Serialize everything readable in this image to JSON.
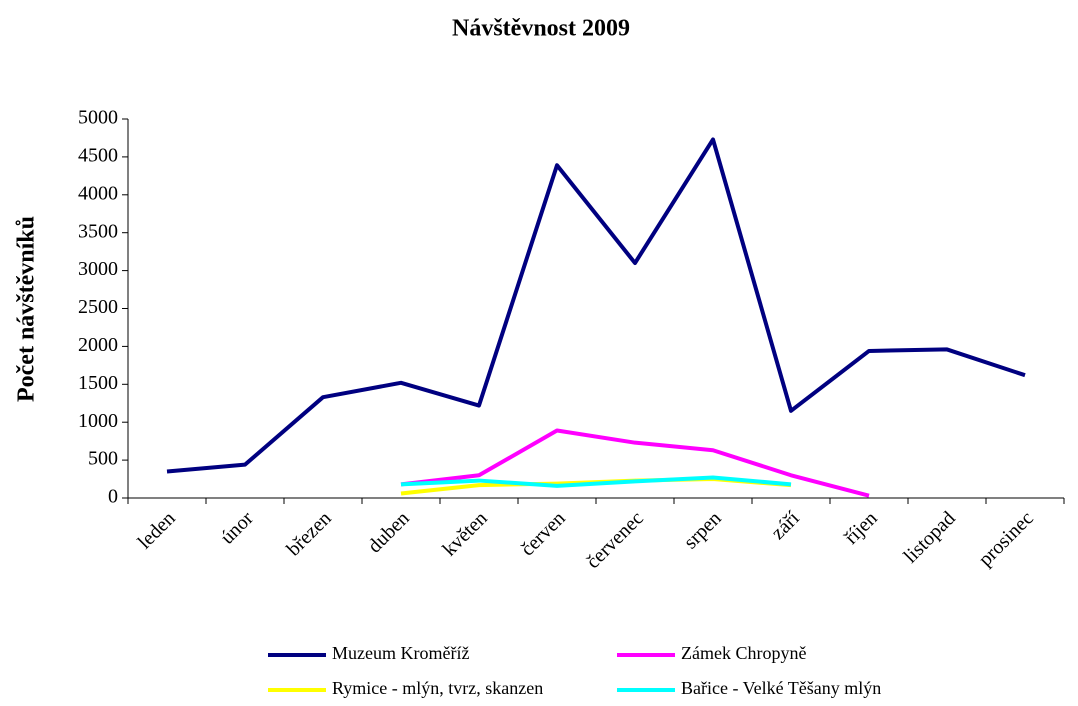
{
  "chart_data": {
    "type": "line",
    "title": "Návštěvnost 2009",
    "y_label": "Počet návštěvníků",
    "categories": [
      "leden",
      "únor",
      "březen",
      "duben",
      "květen",
      "červen",
      "červenec",
      "srpen",
      "září",
      "říjen",
      "listopad",
      "prosinec"
    ],
    "series": [
      {
        "name": "Muzeum Kroměříž",
        "color": "#000080",
        "values": [
          350,
          440,
          1330,
          1520,
          1220,
          4390,
          3100,
          4730,
          1150,
          1940,
          1960,
          1620
        ]
      },
      {
        "name": "Zámek Chropyně",
        "color": "#ff00ff",
        "values": [
          null,
          null,
          null,
          180,
          300,
          890,
          730,
          630,
          300,
          30,
          null,
          null
        ]
      },
      {
        "name": "Rymice - mlýn, tvrz, skanzen",
        "color": "#ffff00",
        "values": [
          null,
          null,
          null,
          60,
          170,
          190,
          230,
          250,
          170,
          null,
          null,
          null
        ]
      },
      {
        "name": "Bařice - Velké Těšany mlýn",
        "color": "#00ffff",
        "values": [
          null,
          null,
          null,
          180,
          230,
          160,
          220,
          270,
          180,
          null,
          null,
          null
        ]
      }
    ],
    "ylim": [
      0,
      5000
    ],
    "yticks": [
      0,
      500,
      1000,
      1500,
      2000,
      2500,
      3000,
      3500,
      4000,
      4500,
      5000
    ]
  }
}
